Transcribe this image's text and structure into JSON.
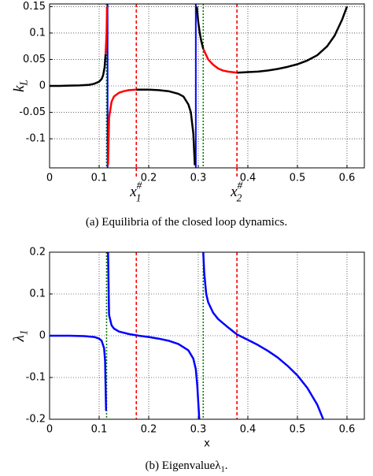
{
  "chart_data": [
    {
      "type": "line",
      "ylabel": {
        "text": "k",
        "sub": "L"
      },
      "caption": {
        "text": "(a) Equilibria of the closed loop dynamics."
      },
      "xlim": [
        0,
        0.635
      ],
      "ylim": [
        -0.155,
        0.155
      ],
      "xticks": [
        0,
        0.1,
        0.2,
        0.3,
        0.4,
        0.5,
        0.6
      ],
      "yticks": [
        -0.1,
        -0.05,
        0,
        0.05,
        0.1,
        0.15
      ],
      "grid": true,
      "vlines": [
        {
          "x": 0.115,
          "color": "#008000",
          "style": "dotted"
        },
        {
          "x": 0.117,
          "color": "#0000ff",
          "style": "solid"
        },
        {
          "x": 0.175,
          "color": "#ff0000",
          "style": "dashed"
        },
        {
          "x": 0.295,
          "color": "#0000ff",
          "style": "solid"
        },
        {
          "x": 0.31,
          "color": "#008000",
          "style": "dotted"
        },
        {
          "x": 0.378,
          "color": "#ff0000",
          "style": "dashed"
        }
      ],
      "annotations": [
        {
          "text": "x",
          "sub": "1",
          "sup": "#",
          "x": 0.175,
          "color": "#ff0000"
        },
        {
          "text": "x",
          "sub": "2",
          "sup": "#",
          "x": 0.378,
          "color": "#ff0000"
        }
      ],
      "series": [
        {
          "color": "#000000",
          "x": [
            0,
            0.02,
            0.04,
            0.06,
            0.08,
            0.09,
            0.1,
            0.105,
            0.108,
            0.111,
            0.113
          ],
          "values": [
            0,
            0,
            0.0005,
            0.001,
            0.002,
            0.004,
            0.008,
            0.013,
            0.02,
            0.035,
            0.06
          ]
        },
        {
          "color": "#ff0000",
          "x": [
            0.113,
            0.115,
            0.116
          ],
          "values": [
            0.06,
            0.1,
            0.15
          ]
        },
        {
          "color": "#ff0000",
          "x": [
            0.118,
            0.12,
            0.125,
            0.13,
            0.14,
            0.15,
            0.16,
            0.175
          ],
          "values": [
            -0.15,
            -0.06,
            -0.03,
            -0.02,
            -0.013,
            -0.01,
            -0.008,
            -0.007
          ]
        },
        {
          "color": "#000000",
          "x": [
            0.175,
            0.2,
            0.22,
            0.24,
            0.26,
            0.27,
            0.28,
            0.285,
            0.29,
            0.293
          ],
          "values": [
            -0.007,
            -0.007,
            -0.008,
            -0.01,
            -0.015,
            -0.02,
            -0.035,
            -0.05,
            -0.09,
            -0.15
          ]
        },
        {
          "color": "#000000",
          "x": [
            0.297,
            0.3,
            0.303,
            0.306,
            0.31
          ],
          "values": [
            0.15,
            0.12,
            0.1,
            0.085,
            0.07
          ]
        },
        {
          "color": "#ff0000",
          "x": [
            0.31,
            0.32,
            0.33,
            0.34,
            0.35,
            0.36,
            0.378
          ],
          "values": [
            0.07,
            0.05,
            0.04,
            0.033,
            0.029,
            0.027,
            0.025
          ]
        },
        {
          "color": "#000000",
          "x": [
            0.378,
            0.4,
            0.42,
            0.44,
            0.46,
            0.48,
            0.5,
            0.52,
            0.54,
            0.56,
            0.575,
            0.59,
            0.6
          ],
          "values": [
            0.025,
            0.026,
            0.027,
            0.029,
            0.032,
            0.036,
            0.041,
            0.048,
            0.058,
            0.075,
            0.095,
            0.125,
            0.15
          ]
        }
      ]
    },
    {
      "type": "line",
      "ylabel": {
        "text": "λ",
        "sub": "1"
      },
      "xlabel": "x",
      "caption": {
        "text": "(b) Eigenvalueλ",
        "sub": "1",
        "end": "."
      },
      "xlim": [
        0,
        0.635
      ],
      "ylim": [
        -0.2,
        0.2
      ],
      "xticks": [
        0,
        0.1,
        0.2,
        0.3,
        0.4,
        0.5,
        0.6
      ],
      "yticks": [
        -0.2,
        -0.1,
        0,
        0.1,
        0.2
      ],
      "grid": true,
      "vlines": [
        {
          "x": 0.115,
          "color": "#008000",
          "style": "dotted"
        },
        {
          "x": 0.175,
          "color": "#ff0000",
          "style": "dashed"
        },
        {
          "x": 0.31,
          "color": "#008000",
          "style": "dotted"
        },
        {
          "x": 0.378,
          "color": "#ff0000",
          "style": "dashed"
        }
      ],
      "series": [
        {
          "color": "#0000ff",
          "x": [
            0,
            0.04,
            0.07,
            0.09,
            0.1,
            0.105,
            0.11,
            0.112,
            0.114
          ],
          "values": [
            0,
            0,
            -0.001,
            -0.003,
            -0.007,
            -0.012,
            -0.03,
            -0.06,
            -0.18
          ]
        },
        {
          "color": "#0000ff",
          "x": [
            0.118,
            0.12,
            0.125,
            0.13,
            0.14,
            0.16,
            0.18,
            0.2,
            0.22,
            0.24,
            0.26,
            0.28,
            0.29,
            0.295,
            0.298,
            0.3,
            0.302
          ],
          "values": [
            0.2,
            0.05,
            0.025,
            0.017,
            0.01,
            0.004,
            0,
            -0.003,
            -0.007,
            -0.012,
            -0.02,
            -0.035,
            -0.055,
            -0.08,
            -0.12,
            -0.16,
            -0.2
          ]
        },
        {
          "color": "#0000ff",
          "x": [
            0.31,
            0.312,
            0.316,
            0.32,
            0.33,
            0.34,
            0.36,
            0.378,
            0.4,
            0.42,
            0.44,
            0.46,
            0.48,
            0.5,
            0.52,
            0.54,
            0.552
          ],
          "values": [
            0.2,
            0.15,
            0.1,
            0.08,
            0.055,
            0.04,
            0.02,
            0.003,
            -0.01,
            -0.022,
            -0.036,
            -0.052,
            -0.072,
            -0.095,
            -0.125,
            -0.165,
            -0.2
          ]
        }
      ]
    }
  ]
}
